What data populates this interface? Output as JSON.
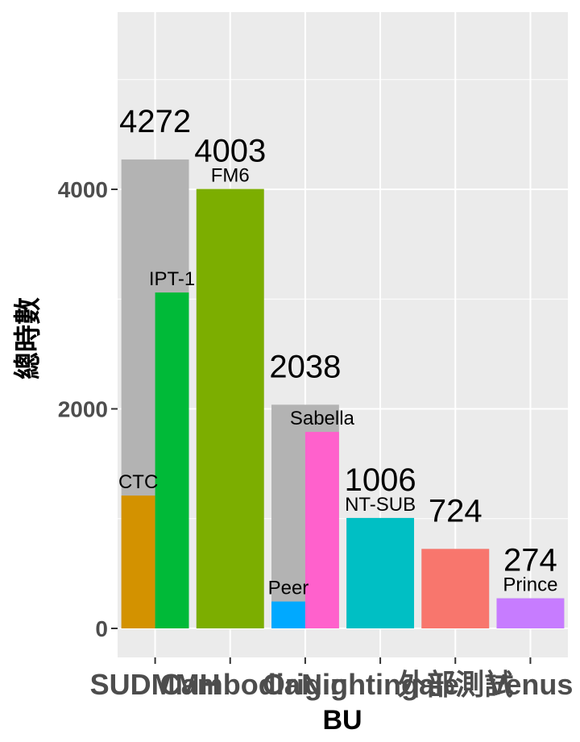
{
  "chart_data": {
    "type": "bar",
    "xlabel": "BU",
    "ylabel": "總時數",
    "ylim": [
      -260,
      5700
    ],
    "yticks": [
      0,
      2000,
      4000
    ],
    "grid": true,
    "background": "#ebebeb",
    "categories": [
      "SUDMMH",
      "Cambodia",
      "Origin",
      "Nightingale",
      "外部測試",
      "Venus"
    ],
    "totals": [
      4272,
      4003,
      2038,
      1006,
      724,
      274
    ],
    "total_color": "#b3b3b3",
    "sub_bars": [
      {
        "category_index": 0,
        "slot": 0,
        "label": "CTC",
        "value": 1210,
        "color": "#D39200"
      },
      {
        "category_index": 0,
        "slot": 1,
        "label": "IPT-1",
        "value": 3060,
        "color": "#00BA38"
      },
      {
        "category_index": 1,
        "slot": 0,
        "width": "full",
        "label": "FM6",
        "value": 4003,
        "color": "#7CAE00"
      },
      {
        "category_index": 2,
        "slot": 0,
        "label": "Peer",
        "value": 245,
        "color": "#00A9FF"
      },
      {
        "category_index": 2,
        "slot": 1,
        "label": "Sabella",
        "value": 1790,
        "color": "#FF61CC"
      },
      {
        "category_index": 3,
        "slot": 0,
        "width": "full",
        "label": "NT-SUB",
        "value": 1006,
        "color": "#00BFC4"
      },
      {
        "category_index": 4,
        "slot": 0,
        "width": "full",
        "label": "",
        "value": 724,
        "color": "#F8766D"
      },
      {
        "category_index": 5,
        "slot": 0,
        "width": "full",
        "label": "Prince",
        "value": 274,
        "color": "#C77CFF"
      }
    ]
  }
}
